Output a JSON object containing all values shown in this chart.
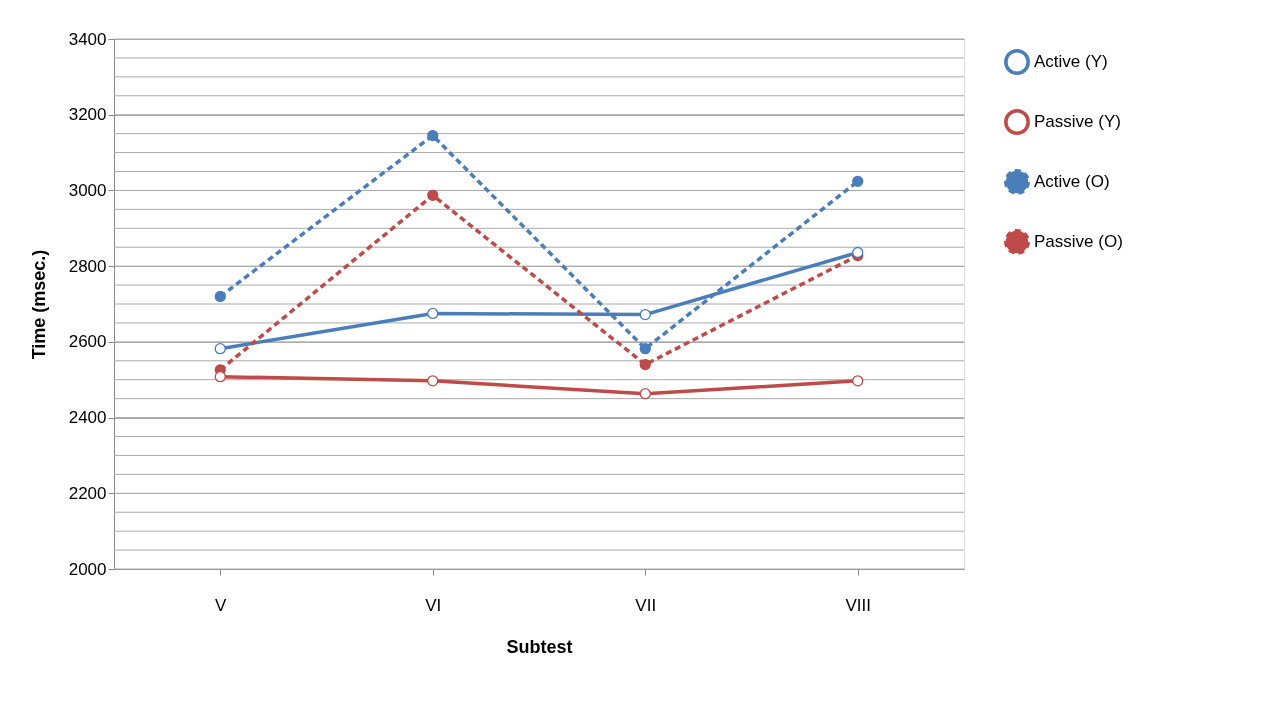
{
  "chart_data": {
    "type": "line",
    "xlabel": "Subtest",
    "ylabel": "Time (msec.)",
    "categories": [
      "V",
      "VI",
      "VII",
      "VIII"
    ],
    "series": [
      {
        "name": "Active (Y)",
        "color": "#4a7ebb",
        "line_style": "solid",
        "marker": "circle",
        "values": [
          2582,
          2675,
          2672,
          2836
        ]
      },
      {
        "name": "Passive (Y)",
        "color": "#be4b48",
        "line_style": "solid",
        "marker": "circle",
        "values": [
          2508,
          2497,
          2463,
          2497
        ]
      },
      {
        "name": "Active (O)",
        "color": "#4a7ebb",
        "line_style": "dashed",
        "marker": "circle",
        "values": [
          2720,
          3145,
          2582,
          3024
        ]
      },
      {
        "name": "Passive (O)",
        "color": "#be4b48",
        "line_style": "dashed",
        "marker": "circle",
        "values": [
          2526,
          2987,
          2540,
          2828
        ]
      }
    ],
    "ylim": [
      2000,
      3400
    ],
    "yticks": [
      2000,
      {
        "value": 2050,
        "label": null
      },
      {
        "value": 2100,
        "label": null
      },
      {
        "value": 2150,
        "label": null
      },
      2200,
      {
        "value": 2250,
        "label": null
      },
      {
        "value": 2300,
        "label": null
      },
      {
        "value": 2350,
        "label": null
      },
      2400,
      {
        "value": 2450,
        "label": null
      },
      {
        "value": 2500,
        "label": null
      },
      {
        "value": 2550,
        "label": null
      },
      2600,
      {
        "value": 2650,
        "label": null
      },
      {
        "value": 2700,
        "label": null
      },
      {
        "value": 2750,
        "label": null
      },
      2800,
      {
        "value": 2850,
        "label": null
      },
      {
        "value": 2900,
        "label": null
      },
      {
        "value": 2950,
        "label": null
      },
      3000,
      {
        "value": 3050,
        "label": null
      },
      {
        "value": 3100,
        "label": null
      },
      {
        "value": 3150,
        "label": null
      },
      3200,
      {
        "value": 3250,
        "label": null
      },
      {
        "value": 3300,
        "label": null
      },
      {
        "value": 3350,
        "label": null
      },
      3400
    ],
    "grid": "y",
    "legend": "right"
  }
}
